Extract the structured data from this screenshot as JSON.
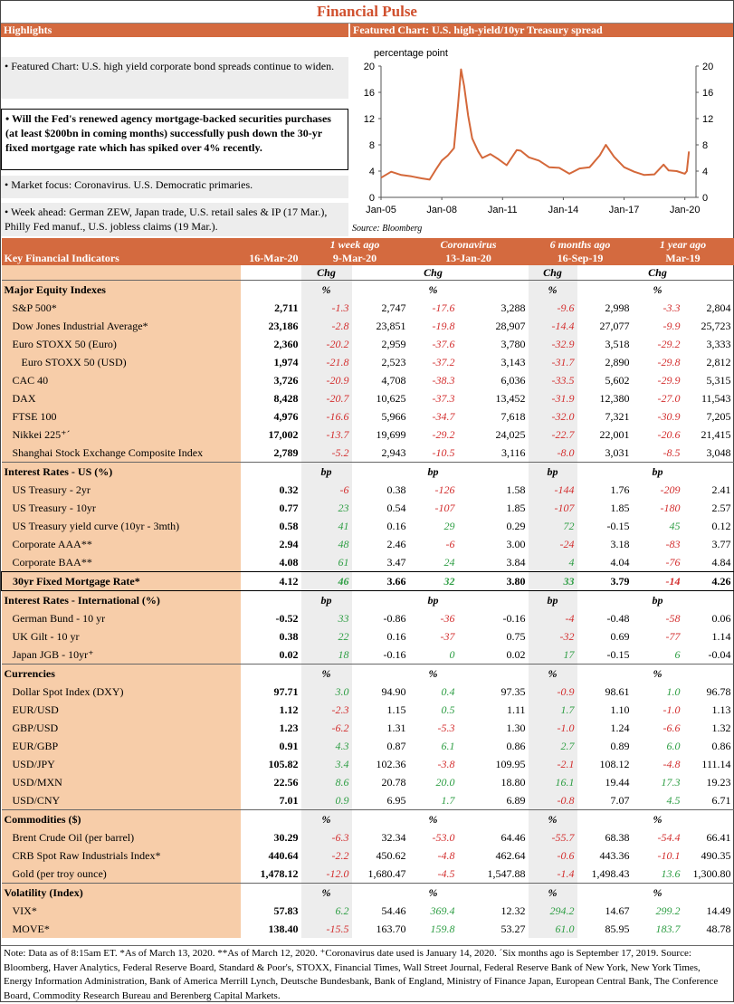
{
  "title": "Financial Pulse",
  "highlights": {
    "header": "Highlights",
    "items": [
      "• Featured Chart: U.S. high yield corporate bond spreads continue to widen.",
      "• Will the Fed's renewed agency mortgage-backed securities purchases (at least $200bn in coming months) successfully push down the 30-yr fixed mortgage rate which has spiked over 4% recently.",
      "• Market focus: Coronavirus. U.S. Democratic primaries.",
      "• Week ahead: German ZEW, Japan trade, U.S. retail sales & IP (17 Mar.), Philly Fed manuf., U.S. jobless claims (19 Mar.)."
    ]
  },
  "featured_chart": {
    "header": "Featured Chart: U.S. high-yield/10yr Treasury spread",
    "source": "Source: Bloomberg",
    "chart_data": {
      "type": "line",
      "ylabel": "percentage point",
      "ylim": [
        0,
        20
      ],
      "yticks": [
        "0",
        "4",
        "8",
        "12",
        "16",
        "20"
      ],
      "xticks": [
        "Jan-05",
        "Jan-08",
        "Jan-11",
        "Jan-14",
        "Jan-17",
        "Jan-20"
      ],
      "color": "#d4683a",
      "x": [
        2005.0,
        2005.5,
        2006.0,
        2006.5,
        2007.0,
        2007.4,
        2007.7,
        2008.0,
        2008.3,
        2008.6,
        2008.8,
        2008.95,
        2009.1,
        2009.3,
        2009.5,
        2009.8,
        2010.0,
        2010.4,
        2010.8,
        2011.2,
        2011.7,
        2011.9,
        2012.3,
        2012.8,
        2013.3,
        2013.8,
        2014.3,
        2014.8,
        2015.3,
        2015.8,
        2016.1,
        2016.5,
        2017.0,
        2017.5,
        2018.0,
        2018.5,
        2018.95,
        2019.2,
        2019.6,
        2020.0,
        2020.1,
        2020.2
      ],
      "y": [
        3.0,
        3.9,
        3.4,
        3.2,
        2.9,
        2.7,
        4.2,
        5.6,
        6.4,
        7.5,
        14.0,
        19.5,
        17.0,
        12.5,
        9.0,
        7.0,
        6.0,
        6.6,
        5.8,
        4.9,
        7.2,
        7.1,
        6.1,
        5.6,
        4.6,
        4.5,
        3.6,
        4.4,
        4.6,
        6.4,
        8.0,
        6.2,
        4.6,
        3.9,
        3.4,
        3.5,
        5.0,
        4.1,
        4.0,
        3.6,
        4.0,
        7.0
      ]
    }
  },
  "table": {
    "title": "Key Financial Indicators",
    "columns": [
      {
        "top": "",
        "bottom": "16-Mar-20"
      },
      {
        "top": "1 week ago",
        "bottom": "9-Mar-20"
      },
      {
        "top": "Coronavirus",
        "bottom": "13-Jan-20"
      },
      {
        "top": "6 months ago",
        "bottom": "16-Sep-19"
      },
      {
        "top": "1 year ago",
        "bottom": "Mar-19"
      }
    ],
    "chg": "Chg",
    "sections": [
      {
        "name": "Major Equity Indexes",
        "unit": "%",
        "rows": [
          {
            "label": "S&P 500*",
            "cur": "2,711",
            "c1": "-1.3",
            "v1": "2,747",
            "c2": "-17.6",
            "v2": "3,288",
            "c3": "-9.6",
            "v3": "2,998",
            "c4": "-3.3",
            "v4": "2,804"
          },
          {
            "label": "Dow Jones Industrial Average*",
            "cur": "23,186",
            "c1": "-2.8",
            "v1": "23,851",
            "c2": "-19.8",
            "v2": "28,907",
            "c3": "-14.4",
            "v3": "27,077",
            "c4": "-9.9",
            "v4": "25,723"
          },
          {
            "label": "Euro STOXX 50 (Euro)",
            "cur": "2,360",
            "c1": "-20.2",
            "v1": "2,959",
            "c2": "-37.6",
            "v2": "3,780",
            "c3": "-32.9",
            "v3": "3,518",
            "c4": "-29.2",
            "v4": "3,333"
          },
          {
            "label": "Euro STOXX 50 (USD)",
            "cur": "1,974",
            "c1": "-21.8",
            "v1": "2,523",
            "c2": "-37.2",
            "v2": "3,143",
            "c3": "-31.7",
            "v3": "2,890",
            "c4": "-29.8",
            "v4": "2,812",
            "indent2": true
          },
          {
            "label": "CAC 40",
            "cur": "3,726",
            "c1": "-20.9",
            "v1": "4,708",
            "c2": "-38.3",
            "v2": "6,036",
            "c3": "-33.5",
            "v3": "5,602",
            "c4": "-29.9",
            "v4": "5,315"
          },
          {
            "label": "DAX",
            "cur": "8,428",
            "c1": "-20.7",
            "v1": "10,625",
            "c2": "-37.3",
            "v2": "13,452",
            "c3": "-31.9",
            "v3": "12,380",
            "c4": "-27.0",
            "v4": "11,543"
          },
          {
            "label": "FTSE 100",
            "cur": "4,976",
            "c1": "-16.6",
            "v1": "5,966",
            "c2": "-34.7",
            "v2": "7,618",
            "c3": "-32.0",
            "v3": "7,321",
            "c4": "-30.9",
            "v4": "7,205"
          },
          {
            "label": "Nikkei 225⁺´",
            "cur": "17,002",
            "c1": "-13.7",
            "v1": "19,699",
            "c2": "-29.2",
            "v2": "24,025",
            "c3": "-22.7",
            "v3": "22,001",
            "c4": "-20.6",
            "v4": "21,415"
          },
          {
            "label": "Shanghai Stock Exchange Composite Index",
            "cur": "2,789",
            "c1": "-5.2",
            "v1": "2,943",
            "c2": "-10.5",
            "v2": "3,116",
            "c3": "-8.0",
            "v3": "3,031",
            "c4": "-8.5",
            "v4": "3,048"
          }
        ]
      },
      {
        "name": "Interest Rates - US (%)",
        "unit": "bp",
        "rows": [
          {
            "label": "US Treasury - 2yr",
            "cur": "0.32",
            "c1": "-6",
            "v1": "0.38",
            "c2": "-126",
            "v2": "1.58",
            "c3": "-144",
            "v3": "1.76",
            "c4": "-209",
            "v4": "2.41"
          },
          {
            "label": "US Treasury - 10yr",
            "cur": "0.77",
            "c1": "23",
            "v1": "0.54",
            "c2": "-107",
            "v2": "1.85",
            "c3": "-107",
            "v3": "1.85",
            "c4": "-180",
            "v4": "2.57"
          },
          {
            "label": "US Treasury yield curve (10yr - 3mth)",
            "cur": "0.58",
            "c1": "41",
            "v1": "0.16",
            "c2": "29",
            "v2": "0.29",
            "c3": "72",
            "v3": "-0.15",
            "c4": "45",
            "v4": "0.12"
          },
          {
            "label": "Corporate AAA**",
            "cur": "2.94",
            "c1": "48",
            "v1": "2.46",
            "c2": "-6",
            "v2": "3.00",
            "c3": "-24",
            "v3": "3.18",
            "c4": "-83",
            "v4": "3.77"
          },
          {
            "label": "Corporate BAA**",
            "cur": "4.08",
            "c1": "61",
            "v1": "3.47",
            "c2": "24",
            "v2": "3.84",
            "c3": "4",
            "v3": "4.04",
            "c4": "-76",
            "v4": "4.84"
          },
          {
            "label": "30yr Fixed Mortgage Rate*",
            "cur": "4.12",
            "c1": "46",
            "v1": "3.66",
            "c2": "32",
            "v2": "3.80",
            "c3": "33",
            "v3": "3.79",
            "c4": "-14",
            "v4": "4.26",
            "highlight": true
          }
        ]
      },
      {
        "name": "Interest Rates - International (%)",
        "unit": "bp",
        "rows": [
          {
            "label": "German Bund - 10 yr",
            "cur": "-0.52",
            "c1": "33",
            "v1": "-0.86",
            "c2": "-36",
            "v2": "-0.16",
            "c3": "-4",
            "v3": "-0.48",
            "c4": "-58",
            "v4": "0.06"
          },
          {
            "label": "UK Gilt - 10 yr",
            "cur": "0.38",
            "c1": "22",
            "v1": "0.16",
            "c2": "-37",
            "v2": "0.75",
            "c3": "-32",
            "v3": "0.69",
            "c4": "-77",
            "v4": "1.14"
          },
          {
            "label": "Japan JGB - 10yr⁺",
            "cur": "0.02",
            "c1": "18",
            "v1": "-0.16",
            "c2": "0",
            "v2": "0.02",
            "c3": "17",
            "v3": "-0.15",
            "c4": "6",
            "v4": "-0.04"
          }
        ]
      },
      {
        "name": "Currencies",
        "unit": "%",
        "rows": [
          {
            "label": "Dollar Spot Index (DXY)",
            "cur": "97.71",
            "c1": "3.0",
            "v1": "94.90",
            "c2": "0.4",
            "v2": "97.35",
            "c3": "-0.9",
            "v3": "98.61",
            "c4": "1.0",
            "v4": "96.78"
          },
          {
            "label": "EUR/USD",
            "cur": "1.12",
            "c1": "-2.3",
            "v1": "1.15",
            "c2": "0.5",
            "v2": "1.11",
            "c3": "1.7",
            "v3": "1.10",
            "c4": "-1.0",
            "v4": "1.13"
          },
          {
            "label": "GBP/USD",
            "cur": "1.23",
            "c1": "-6.2",
            "v1": "1.31",
            "c2": "-5.3",
            "v2": "1.30",
            "c3": "-1.0",
            "v3": "1.24",
            "c4": "-6.6",
            "v4": "1.32"
          },
          {
            "label": "EUR/GBP",
            "cur": "0.91",
            "c1": "4.3",
            "v1": "0.87",
            "c2": "6.1",
            "v2": "0.86",
            "c3": "2.7",
            "v3": "0.89",
            "c4": "6.0",
            "v4": "0.86"
          },
          {
            "label": "USD/JPY",
            "cur": "105.82",
            "c1": "3.4",
            "v1": "102.36",
            "c2": "-3.8",
            "v2": "109.95",
            "c3": "-2.1",
            "v3": "108.12",
            "c4": "-4.8",
            "v4": "111.14"
          },
          {
            "label": "USD/MXN",
            "cur": "22.56",
            "c1": "8.6",
            "v1": "20.78",
            "c2": "20.0",
            "v2": "18.80",
            "c3": "16.1",
            "v3": "19.44",
            "c4": "17.3",
            "v4": "19.23"
          },
          {
            "label": "USD/CNY",
            "cur": "7.01",
            "c1": "0.9",
            "v1": "6.95",
            "c2": "1.7",
            "v2": "6.89",
            "c3": "-0.8",
            "v3": "7.07",
            "c4": "4.5",
            "v4": "6.71"
          }
        ]
      },
      {
        "name": "Commodities ($)",
        "unit": "%",
        "rows": [
          {
            "label": "Brent Crude Oil (per barrel)",
            "cur": "30.29",
            "c1": "-6.3",
            "v1": "32.34",
            "c2": "-53.0",
            "v2": "64.46",
            "c3": "-55.7",
            "v3": "68.38",
            "c4": "-54.4",
            "v4": "66.41"
          },
          {
            "label": "CRB Spot Raw Industrials Index*",
            "cur": "440.64",
            "c1": "-2.2",
            "v1": "450.62",
            "c2": "-4.8",
            "v2": "462.64",
            "c3": "-0.6",
            "v3": "443.36",
            "c4": "-10.1",
            "v4": "490.35"
          },
          {
            "label": "Gold (per troy ounce)",
            "cur": "1,478.12",
            "c1": "-12.0",
            "v1": "1,680.47",
            "c2": "-4.5",
            "v2": "1,547.88",
            "c3": "-1.4",
            "v3": "1,498.43",
            "c4": "13.6",
            "v4": "1,300.80"
          }
        ]
      },
      {
        "name": "Volatility (Index)",
        "unit": "%",
        "rows": [
          {
            "label": "VIX*",
            "cur": "57.83",
            "c1": "6.2",
            "v1": "54.46",
            "c2": "369.4",
            "v2": "12.32",
            "c3": "294.2",
            "v3": "14.67",
            "c4": "299.2",
            "v4": "14.49"
          },
          {
            "label": "MOVE*",
            "cur": "138.40",
            "c1": "-15.5",
            "v1": "163.70",
            "c2": "159.8",
            "v2": "53.27",
            "c3": "61.0",
            "v3": "85.95",
            "c4": "183.7",
            "v4": "48.78"
          }
        ]
      }
    ]
  },
  "note": "Note: Data as of 8:15am ET. *As of March 13, 2020. **As of March 12, 2020. ⁺Coronavirus date used is January 14, 2020. ´Six months ago is September 17, 2019. Source: Bloomberg, Haver Analytics, Federal Reserve Board, Standard & Poor's, STOXX, Financial Times, Wall Street Journal, Federal Reserve Bank of New York, New York Times, Energy Information Administration, Bank of America Merrill Lynch, Deutsche Bundesbank, Bank of England, Ministry of Finance Japan, European Central Bank, The Conference Board, Commodity Research Bureau and Berenberg Capital Markets."
}
